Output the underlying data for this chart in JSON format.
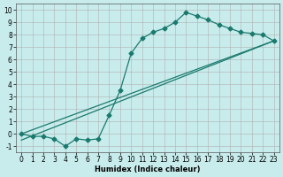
{
  "xlabel": "Humidex (Indice chaleur)",
  "background_color": "#c8ecec",
  "grid_color": "#b0b0b0",
  "line_color": "#1a7a6e",
  "xlim": [
    -0.5,
    23.5
  ],
  "ylim": [
    -1.5,
    10.5
  ],
  "xticks": [
    0,
    1,
    2,
    3,
    4,
    5,
    6,
    7,
    8,
    9,
    10,
    11,
    12,
    13,
    14,
    15,
    16,
    17,
    18,
    19,
    20,
    21,
    22,
    23
  ],
  "yticks": [
    -1,
    0,
    1,
    2,
    3,
    4,
    5,
    6,
    7,
    8,
    9,
    10
  ],
  "line1_x": [
    0,
    1,
    2,
    3,
    4,
    5,
    6,
    7,
    8,
    9,
    10,
    11,
    12,
    13,
    14,
    15,
    16,
    17,
    18,
    19,
    20,
    21,
    22,
    23
  ],
  "line1_y": [
    0,
    -0.2,
    -0.2,
    -0.4,
    -1.0,
    -0.4,
    -0.5,
    -0.4,
    1.5,
    3.5,
    6.5,
    7.7,
    8.2,
    8.5,
    9.0,
    9.8,
    9.5,
    9.2,
    8.8,
    8.5,
    8.2,
    8.1,
    8.0,
    7.5
  ],
  "line2_x": [
    0,
    23
  ],
  "line2_y": [
    0,
    7.5
  ],
  "line3_x": [
    0,
    23
  ],
  "line3_y": [
    -0.5,
    7.5
  ],
  "markersize": 2.5,
  "linewidth": 0.9,
  "xlabel_fontsize": 6.0,
  "tick_fontsize": 5.5
}
